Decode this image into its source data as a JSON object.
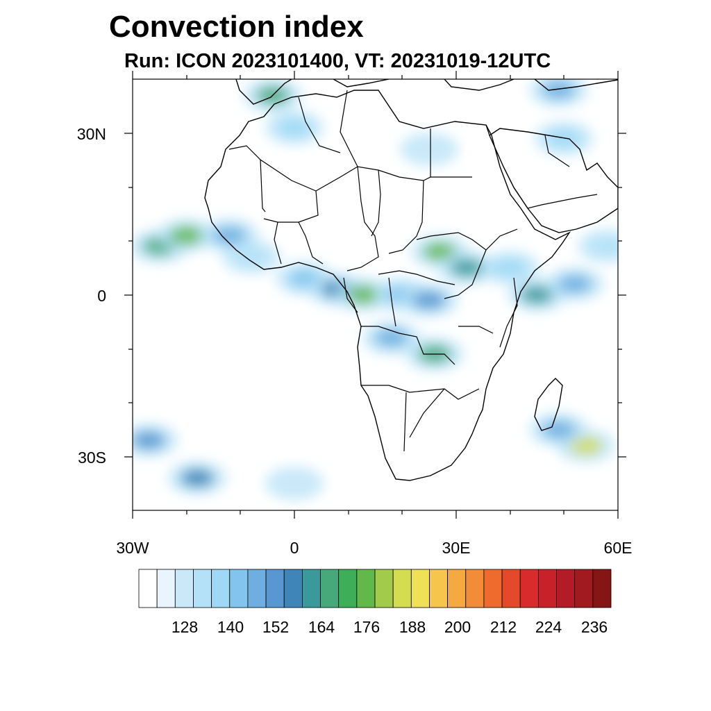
{
  "map": {
    "title": "Convection index",
    "subtitle": "Run: ICON 2023101400,  VT: 20231019-12UTC",
    "extent": {
      "lon_min": -30,
      "lon_max": 60,
      "lat_min": -40,
      "lat_max": 40
    },
    "lat_labels": [
      {
        "lat": 30,
        "text": "30N"
      },
      {
        "lat": 0,
        "text": "0"
      },
      {
        "lat": -30,
        "text": "30S"
      }
    ],
    "lon_labels": [
      {
        "lon": -30,
        "text": "30W"
      },
      {
        "lon": 0,
        "text": "0"
      },
      {
        "lon": 30,
        "text": "30E"
      },
      {
        "lon": 60,
        "text": "60E"
      }
    ]
  },
  "colorbar": {
    "colors": [
      "#ffffff",
      "#e9f5fc",
      "#cbe8f8",
      "#b5e1f8",
      "#9ed8f5",
      "#83c4ec",
      "#6faee0",
      "#5a97d2",
      "#3f85b8",
      "#3a9a9a",
      "#47a87a",
      "#3fae59",
      "#63b84a",
      "#a3cb4b",
      "#d4dc4f",
      "#f0e055",
      "#f6c64c",
      "#f4a941",
      "#f28c36",
      "#ee6a2d",
      "#e44a2a",
      "#d92b2b",
      "#c8212a",
      "#b31b26",
      "#a11a20",
      "#861516"
    ],
    "labels": [
      "128",
      "140",
      "152",
      "164",
      "176",
      "188",
      "200",
      "212",
      "224",
      "236"
    ]
  },
  "convection_areas": [
    {
      "lon": -25.0,
      "lat": 9.0,
      "intensity": 175
    },
    {
      "lon": -20.0,
      "lat": 11.0,
      "intensity": 190
    },
    {
      "lon": -12.0,
      "lat": 11.0,
      "intensity": 150
    },
    {
      "lon": -8.0,
      "lat": 7.0,
      "intensity": 135
    },
    {
      "lon": 2.0,
      "lat": 3.0,
      "intensity": 145
    },
    {
      "lon": 8.0,
      "lat": 1.0,
      "intensity": 165
    },
    {
      "lon": 13.0,
      "lat": 0.0,
      "intensity": 185
    },
    {
      "lon": 20.0,
      "lat": 0.0,
      "intensity": 145
    },
    {
      "lon": 25.0,
      "lat": -1.0,
      "intensity": 155
    },
    {
      "lon": 27.0,
      "lat": 8.0,
      "intensity": 190
    },
    {
      "lon": 32.0,
      "lat": 5.0,
      "intensity": 170
    },
    {
      "lon": 18.0,
      "lat": -8.0,
      "intensity": 150
    },
    {
      "lon": 26.0,
      "lat": -11.0,
      "intensity": 175
    },
    {
      "lon": 45.0,
      "lat": 0.0,
      "intensity": 170
    },
    {
      "lon": 52.0,
      "lat": 2.0,
      "intensity": 150
    },
    {
      "lon": 0.0,
      "lat": 31.0,
      "intensity": 140
    },
    {
      "lon": -4.0,
      "lat": 37.0,
      "intensity": 175
    },
    {
      "lon": 54.0,
      "lat": -28.0,
      "intensity": 200
    },
    {
      "lon": 49.0,
      "lat": -25.0,
      "intensity": 150
    },
    {
      "lon": -27.0,
      "lat": -27.0,
      "intensity": 155
    },
    {
      "lon": -18.0,
      "lat": -34.0,
      "intensity": 165
    },
    {
      "lon": 0.0,
      "lat": -35.0,
      "intensity": 130
    },
    {
      "lon": 25.0,
      "lat": 27.0,
      "intensity": 128
    },
    {
      "lon": 50.0,
      "lat": 29.0,
      "intensity": 140
    },
    {
      "lon": 49.0,
      "lat": 38.0,
      "intensity": 150
    },
    {
      "lon": 40.0,
      "lat": 5.0,
      "intensity": 140
    },
    {
      "lon": 58.0,
      "lat": 9.0,
      "intensity": 135
    }
  ]
}
